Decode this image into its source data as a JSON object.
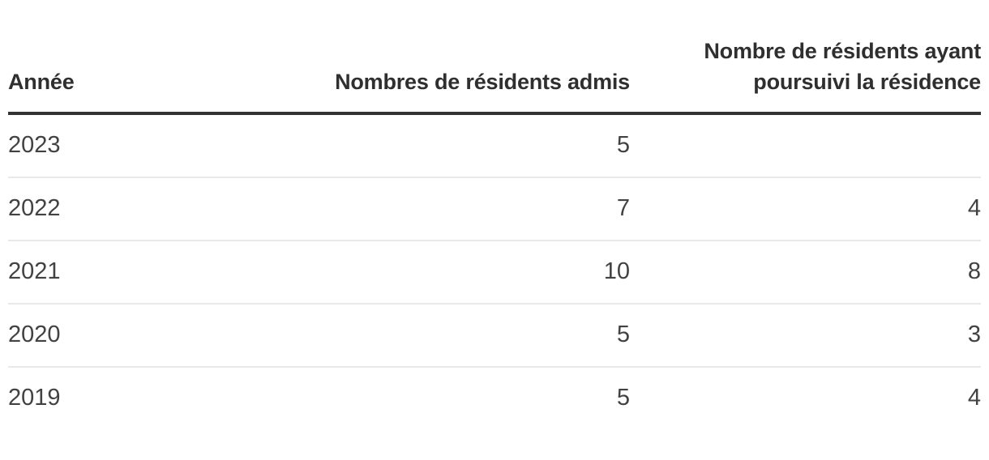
{
  "colors": {
    "background": "#ffffff",
    "header_text": "#2f2f2f",
    "header_rule": "#333333",
    "row_text": "#424242",
    "row_divider": "#e9e9e9"
  },
  "table": {
    "headers": [
      {
        "label": "Année"
      },
      {
        "label": "Nombres de résidents admis"
      },
      {
        "label": "Nombre de résidents ayant poursuivi la résidence"
      }
    ],
    "rows": [
      {
        "year": "2023",
        "admis": "5",
        "poursuivi": ""
      },
      {
        "year": "2022",
        "admis": "7",
        "poursuivi": "4"
      },
      {
        "year": "2021",
        "admis": "10",
        "poursuivi": "8"
      },
      {
        "year": "2020",
        "admis": "5",
        "poursuivi": "3"
      },
      {
        "year": "2019",
        "admis": "5",
        "poursuivi": "4"
      }
    ]
  },
  "chart_data": {
    "type": "table",
    "title": "",
    "columns": [
      "Année",
      "Nombres de résidents admis",
      "Nombre de résidents ayant poursuivi la résidence"
    ],
    "categories": [
      "2023",
      "2022",
      "2021",
      "2020",
      "2019"
    ],
    "series": [
      {
        "name": "Nombres de résidents admis",
        "values": [
          5,
          7,
          10,
          5,
          5
        ]
      },
      {
        "name": "Nombre de résidents ayant poursuivi la résidence",
        "values": [
          null,
          4,
          8,
          3,
          4
        ]
      }
    ],
    "layout_hints": {
      "first_column_align": "left",
      "value_columns_align": "right",
      "header_rule": "thick dark",
      "row_dividers": "thin light gray"
    }
  }
}
